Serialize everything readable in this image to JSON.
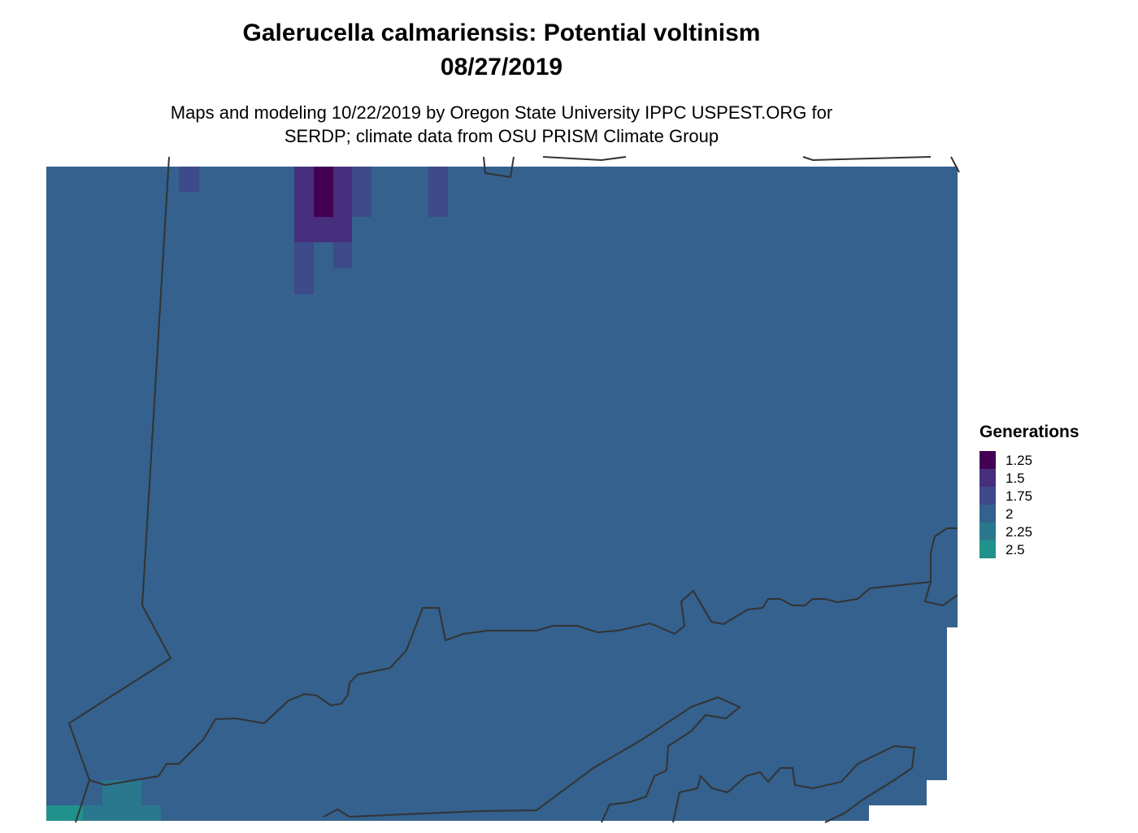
{
  "title": "Galerucella calmariensis: Potential voltinism",
  "date": "08/27/2019",
  "subtitle": [
    "Maps and modeling 10/22/2019 by Oregon State University IPPC USPEST.ORG for",
    "SERDP; climate data from OSU PRISM Climate Group"
  ],
  "legend": {
    "title": "Generations",
    "items": [
      {
        "value": 1.25,
        "color": "#440154"
      },
      {
        "value": 1.5,
        "color": "#472f7d"
      },
      {
        "value": 1.75,
        "color": "#3e4a89"
      },
      {
        "value": 2,
        "color": "#34618d"
      },
      {
        "value": 2.25,
        "color": "#2a788e"
      },
      {
        "value": 2.5,
        "color": "#21918c"
      }
    ]
  }
}
